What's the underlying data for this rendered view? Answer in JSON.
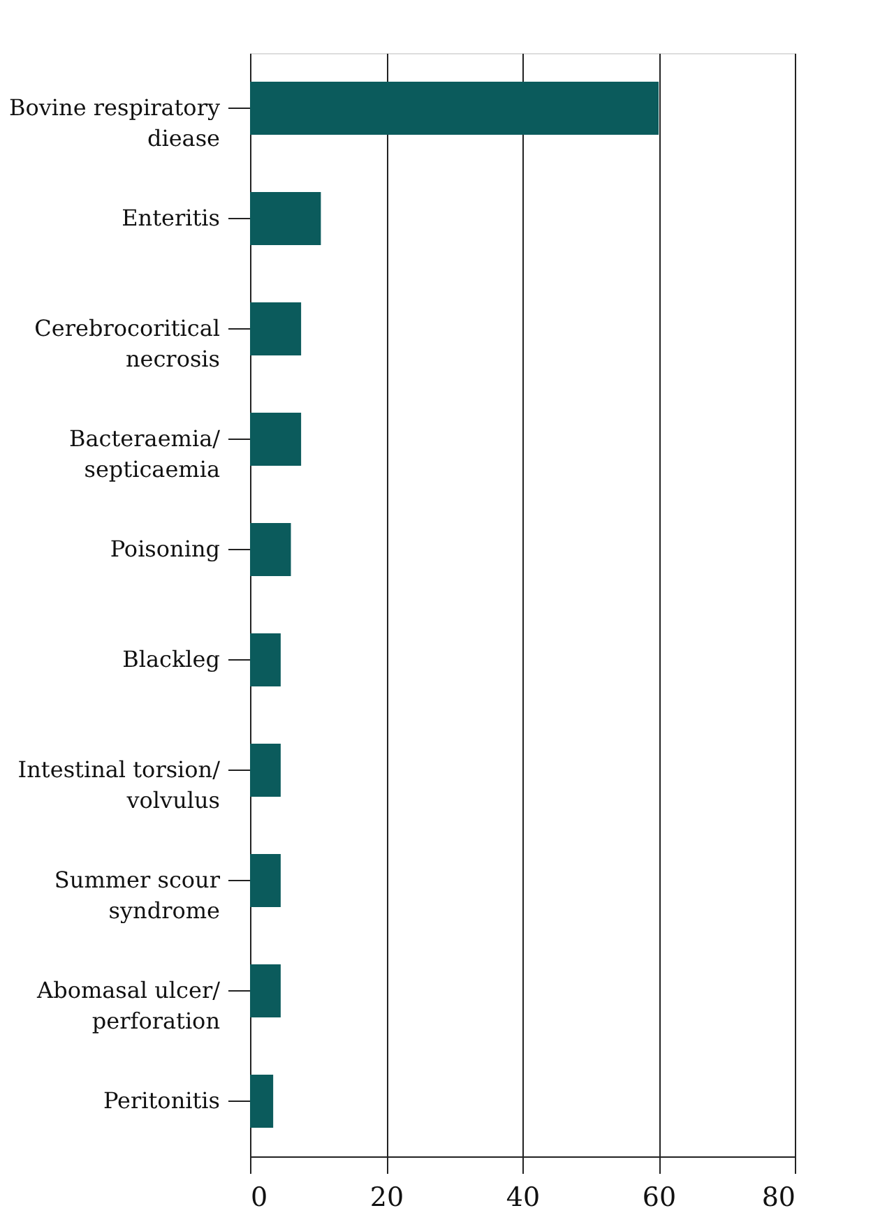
{
  "chart_data": {
    "type": "bar",
    "orientation": "horizontal",
    "categories": [
      "Bovine respiratory\ndiease",
      "Enteritis",
      "Cerebrocoritical\nnecrosis",
      "Bacteraemia/\nsepticaemia",
      "Poisoning",
      "Blackleg",
      "Intestinal torsion/\nvolvulus",
      "Summer scour\nsyndrome",
      "Abomasal ulcer/\nperforation",
      "Peritonitis"
    ],
    "values": [
      60,
      10.4,
      7.5,
      7.5,
      6,
      4.5,
      4.5,
      4.5,
      4.5,
      3.4
    ],
    "color": "#0b5b5c",
    "xlim": [
      0,
      80
    ],
    "xticks": [
      0,
      20,
      40,
      60,
      80
    ],
    "grid": "x"
  }
}
